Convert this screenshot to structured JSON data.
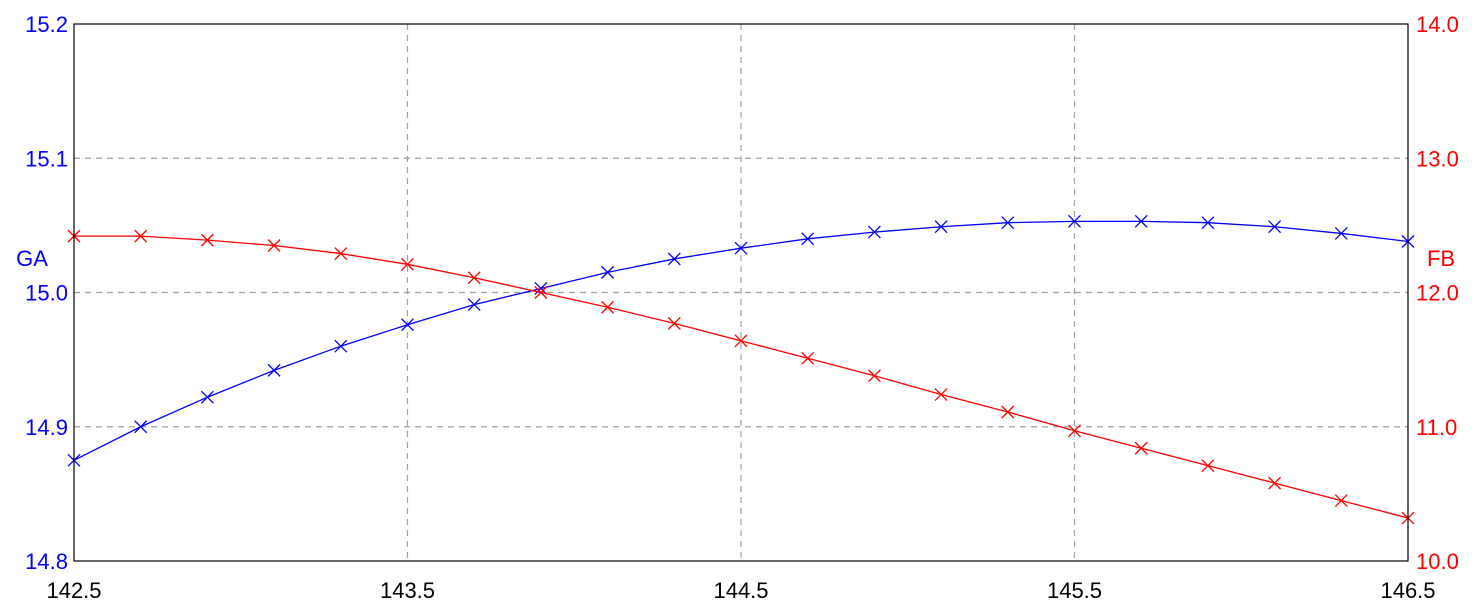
{
  "chart_data": {
    "type": "line",
    "title": "",
    "xlabel": "",
    "xlim": [
      142.5,
      146.5
    ],
    "x_ticks": [
      "142.5",
      "143.5",
      "144.5",
      "145.5",
      "146.5"
    ],
    "x_tick_values": [
      142.5,
      143.5,
      144.5,
      145.5,
      146.5
    ],
    "grid": true,
    "y_left": {
      "label": "GA",
      "ylim": [
        14.8,
        15.2
      ],
      "ticks": [
        "14.8",
        "14.9",
        "15.0",
        "15.1",
        "15.2"
      ],
      "tick_values": [
        14.8,
        14.9,
        15.0,
        15.1,
        15.2
      ],
      "color": "#0000ff"
    },
    "y_right": {
      "label": "FB",
      "ylim": [
        10.0,
        14.0
      ],
      "ticks": [
        "10.0",
        "11.0",
        "12.0",
        "13.0",
        "14.0"
      ],
      "tick_values": [
        10.0,
        11.0,
        12.0,
        13.0,
        14.0
      ],
      "color": "#ff0000"
    },
    "x": [
      142.5,
      142.7,
      142.9,
      143.1,
      143.3,
      143.5,
      143.7,
      143.9,
      144.1,
      144.3,
      144.5,
      144.7,
      144.9,
      145.1,
      145.3,
      145.5,
      145.7,
      145.9,
      146.1,
      146.3,
      146.5
    ],
    "series": [
      {
        "name": "GA",
        "axis": "left",
        "color": "#0000ff",
        "marker": "x",
        "values": [
          14.875,
          14.9,
          14.922,
          14.942,
          14.96,
          14.976,
          14.991,
          15.003,
          15.015,
          15.025,
          15.033,
          15.04,
          15.045,
          15.049,
          15.052,
          15.053,
          15.053,
          15.052,
          15.049,
          15.044,
          15.038
        ]
      },
      {
        "name": "FB",
        "axis": "right",
        "color": "#ff0000",
        "marker": "x",
        "values": [
          12.42,
          12.42,
          12.39,
          12.35,
          12.29,
          12.21,
          12.11,
          12.0,
          11.89,
          11.77,
          11.64,
          11.51,
          11.38,
          11.24,
          11.11,
          10.97,
          10.84,
          10.71,
          10.58,
          10.45,
          10.32
        ]
      }
    ]
  }
}
